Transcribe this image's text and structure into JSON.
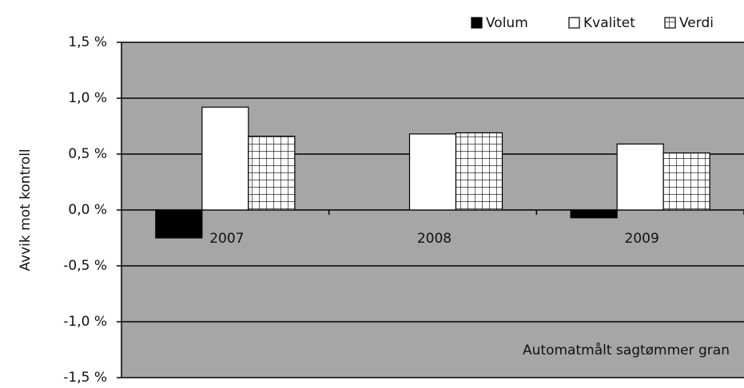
{
  "chart_data": {
    "type": "bar",
    "y_label": "Avvik mot kontroll",
    "annotation": "Automatmålt sagtømmer gran",
    "categories": [
      "2007",
      "2008",
      "2009"
    ],
    "series": [
      {
        "name": "Volum",
        "color": "#000000",
        "values": [
          -0.25,
          0.0,
          -0.07
        ]
      },
      {
        "name": "Kvalitet",
        "color": "#ffffff",
        "values": [
          0.92,
          0.68,
          0.59
        ]
      },
      {
        "name": "Verdi",
        "color": "#ffffff",
        "pattern": "grid",
        "values": [
          0.66,
          0.69,
          0.51
        ]
      }
    ],
    "ylim": [
      -1.5,
      1.5
    ],
    "yticks": [
      {
        "value": -1.5,
        "label": "-1,5 %"
      },
      {
        "value": -1.0,
        "label": "-1,0 %"
      },
      {
        "value": -0.5,
        "label": "-0,5 %"
      },
      {
        "value": 0.0,
        "label": "0,0 %"
      },
      {
        "value": 0.5,
        "label": "0,5 %"
      },
      {
        "value": 1.0,
        "label": "1,0 %"
      },
      {
        "value": 1.5,
        "label": "1,5 %"
      }
    ],
    "grid": true,
    "legend": "top-right",
    "plot_background": "#a6a6a6"
  }
}
